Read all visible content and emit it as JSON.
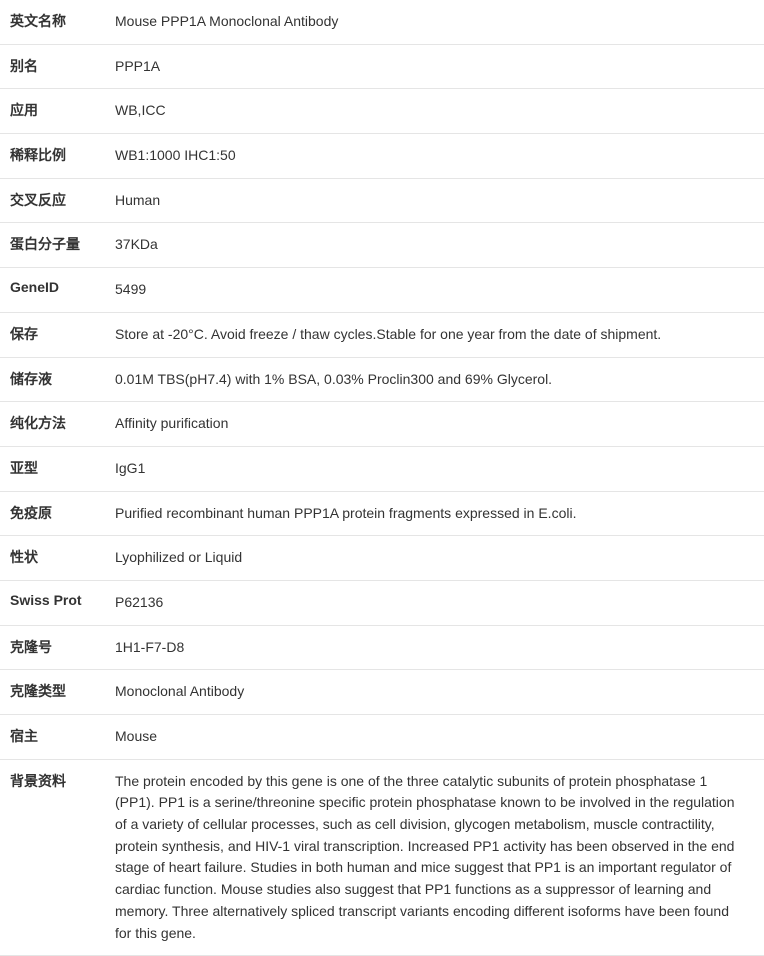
{
  "rows": [
    {
      "label": "英文名称",
      "value": "Mouse PPP1A Monoclonal Antibody"
    },
    {
      "label": "别名",
      "value": "PPP1A"
    },
    {
      "label": "应用",
      "value": "WB,ICC"
    },
    {
      "label": "稀释比例",
      "value": "WB1:1000 IHC1:50"
    },
    {
      "label": "交叉反应",
      "value": "Human"
    },
    {
      "label": "蛋白分子量",
      "value": "37KDa"
    },
    {
      "label": "GeneID",
      "value": "5499"
    },
    {
      "label": "保存",
      "value": "Store at -20°C. Avoid freeze / thaw cycles.Stable for one year from the date of shipment."
    },
    {
      "label": "储存液",
      "value": "0.01M TBS(pH7.4) with 1% BSA, 0.03% Proclin300 and 69% Glycerol."
    },
    {
      "label": "纯化方法",
      "value": "Affinity purification"
    },
    {
      "label": "亚型",
      "value": "IgG1"
    },
    {
      "label": "免疫原",
      "value": "Purified recombinant human PPP1A protein fragments expressed in E.coli."
    },
    {
      "label": "性状",
      "value": "Lyophilized or Liquid"
    },
    {
      "label": "Swiss Prot",
      "value": "P62136"
    },
    {
      "label": "克隆号",
      "value": "1H1-F7-D8"
    },
    {
      "label": "克隆类型",
      "value": "Monoclonal Antibody"
    },
    {
      "label": "宿主",
      "value": "Mouse"
    },
    {
      "label": "背景资料",
      "value": "The protein encoded by this gene is one of the three catalytic subunits of protein phosphatase 1 (PP1). PP1 is a serine/threonine specific protein phosphatase known to be involved in the regulation of a variety of cellular processes, such as cell division, glycogen metabolism, muscle contractility, protein synthesis, and HIV-1 viral transcription. Increased PP1 activity has been observed in the end stage of heart failure. Studies in both human and mice suggest that PP1 is an important regulator of cardiac function. Mouse studies also suggest that PP1 functions as a suppressor of learning and memory. Three alternatively spliced transcript variants encoding different isoforms have been found for this gene."
    }
  ],
  "styles": {
    "font_size": 14,
    "label_width": 115,
    "border_color": "#e5e5e5",
    "text_color": "#333333",
    "background_color": "#ffffff",
    "row_padding_v": 11,
    "line_height": 1.55
  }
}
